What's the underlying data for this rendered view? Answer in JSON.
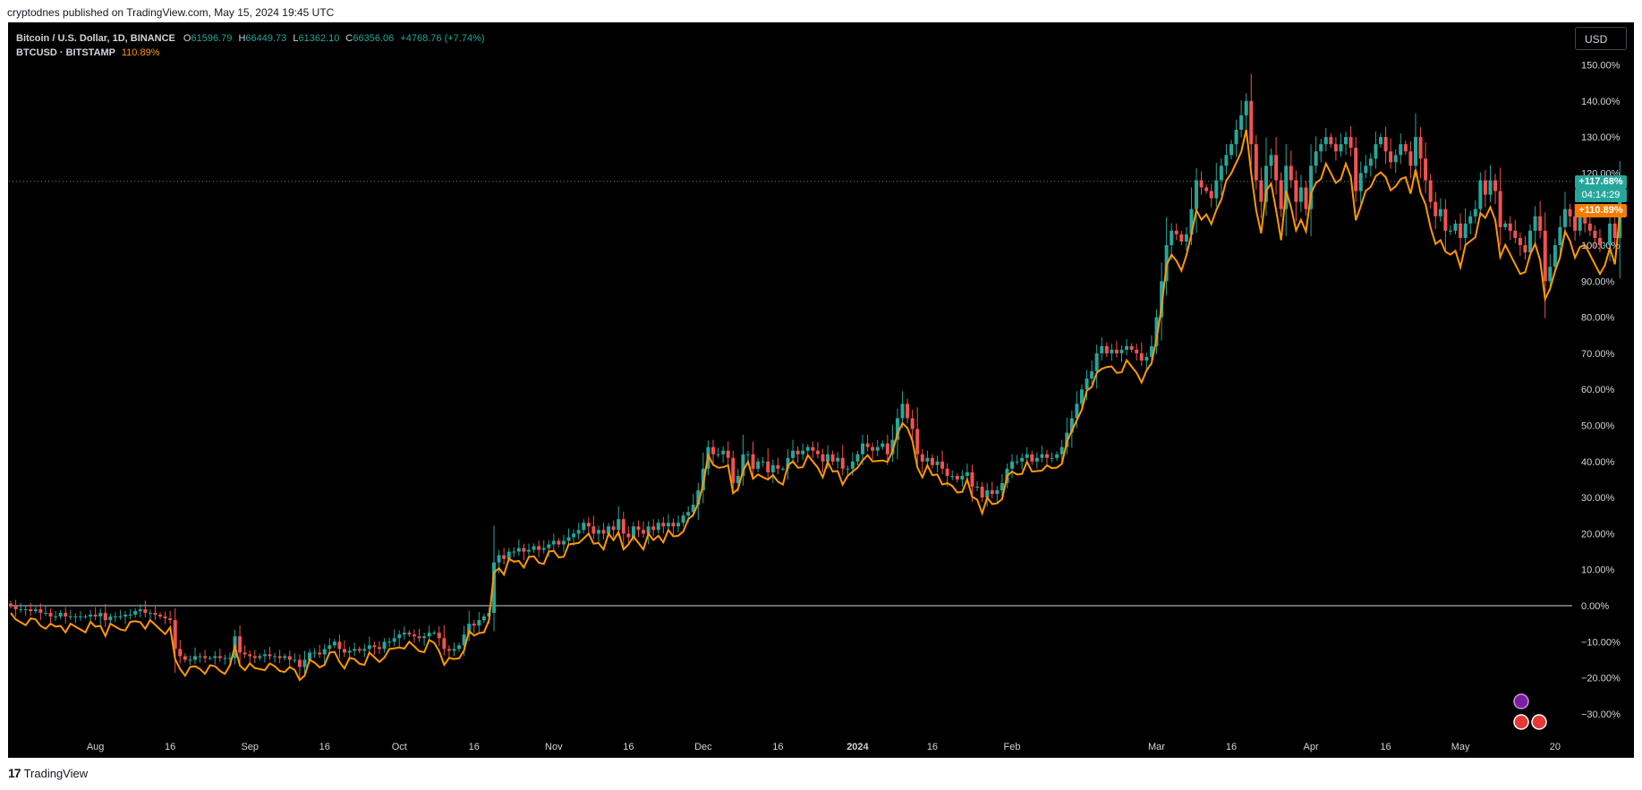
{
  "publish_line": "cryptodnes published on TradingView.com, May 15, 2024 19:45 UTC",
  "legend": {
    "symbol": "Bitcoin / U.S. Dollar, 1D, BINANCE",
    "o_label": "O",
    "o_value": "61596.79",
    "h_label": "H",
    "h_value": "66449.73",
    "l_label": "L",
    "l_value": "61362.10",
    "c_label": "C",
    "c_value": "66356.06",
    "change": "+4768.76 (+7.74%)",
    "compare_symbol": "BTCUSD · BITSTAMP",
    "compare_value": "110.89%"
  },
  "currency_button": "USD",
  "footer_text": "TradingView",
  "footer_logo": "17",
  "colors": {
    "up": "#26a69a",
    "down": "#ef5350",
    "compare": "#ff9800",
    "background": "#000000"
  },
  "price_tags": {
    "main_value": "+117.68%",
    "countdown": "04:14:29",
    "compare_value": "+110.89%"
  },
  "icons": [
    "lightning-icon",
    "us-flag-icon",
    "us-flag-icon"
  ],
  "chart_data": {
    "type": "candlestick",
    "y_scale": "percent",
    "ylim": [
      -35,
      152
    ],
    "yticks": [
      150,
      140,
      130,
      120,
      110,
      100,
      90,
      80,
      70,
      60,
      50,
      40,
      30,
      20,
      10,
      0,
      -10,
      -20,
      -30
    ],
    "ytick_labels": [
      "150.00%",
      "140.00%",
      "130.00%",
      "120.00%",
      "110.00%",
      "100.00%",
      "90.00%",
      "80.00%",
      "70.00%",
      "60.00%",
      "50.00%",
      "40.00%",
      "30.00%",
      "20.00%",
      "10.00%",
      "0.00%",
      "−10.00%",
      "−20.00%",
      "−30.00%"
    ],
    "x_range": [
      "2023-07-15",
      "2024-05-22"
    ],
    "xticks": [
      {
        "date": "2023-08-01",
        "label": "Aug"
      },
      {
        "date": "2023-08-16",
        "label": "16"
      },
      {
        "date": "2023-09-01",
        "label": "Sep"
      },
      {
        "date": "2023-09-16",
        "label": "16"
      },
      {
        "date": "2023-10-01",
        "label": "Oct"
      },
      {
        "date": "2023-10-16",
        "label": "16"
      },
      {
        "date": "2023-11-01",
        "label": "Nov"
      },
      {
        "date": "2023-11-16",
        "label": "16"
      },
      {
        "date": "2023-12-01",
        "label": "Dec"
      },
      {
        "date": "2023-12-16",
        "label": "16"
      },
      {
        "date": "2024-01-01",
        "label": "2024"
      },
      {
        "date": "2024-01-16",
        "label": "16"
      },
      {
        "date": "2024-02-01",
        "label": "Feb"
      },
      {
        "date": "2024-03-01",
        "label": "Mar"
      },
      {
        "date": "2024-03-16",
        "label": "16"
      },
      {
        "date": "2024-04-01",
        "label": "Apr"
      },
      {
        "date": "2024-04-16",
        "label": "16"
      },
      {
        "date": "2024-05-01",
        "label": "May"
      },
      {
        "date": "2024-05-20",
        "label": "20"
      }
    ],
    "series": [
      {
        "name": "Bitcoin / U.S. Dollar",
        "type": "candlestick",
        "start_date": "2023-07-15",
        "close": [
          0,
          -1,
          -1,
          -1,
          -1.5,
          -1,
          -2,
          -2,
          -3,
          -3,
          -2,
          -3,
          -3,
          -3,
          -3,
          -3,
          -2.5,
          -3,
          -2,
          -4,
          -3,
          -3,
          -3,
          -2.5,
          -2.5,
          -1.5,
          -1,
          -2,
          -2,
          -2.5,
          -3,
          -3.5,
          -4,
          -12,
          -14,
          -15,
          -15,
          -14,
          -14,
          -14.5,
          -14.5,
          -14,
          -14.5,
          -14.5,
          -14.5,
          -8.5,
          -13,
          -13.5,
          -14,
          -14.5,
          -14,
          -13.5,
          -14,
          -14,
          -14.5,
          -14,
          -15,
          -15,
          -17,
          -15,
          -13,
          -13,
          -13.5,
          -12,
          -11,
          -10,
          -12,
          -13,
          -12.5,
          -12,
          -12.5,
          -12,
          -11,
          -11.5,
          -12,
          -10,
          -10,
          -9,
          -8,
          -7.5,
          -8,
          -8.5,
          -9,
          -8.5,
          -7.5,
          -7.5,
          -9,
          -12,
          -12.5,
          -12,
          -11,
          -8,
          -5,
          -5.5,
          -4,
          -3,
          -2,
          12,
          14,
          13,
          15,
          15,
          16,
          15,
          15.5,
          16.5,
          15.5,
          16,
          17,
          18,
          17,
          18,
          19,
          20,
          21,
          23,
          22,
          20,
          21,
          20,
          22,
          21,
          24,
          20,
          19,
          22,
          21,
          20,
          22,
          21,
          23,
          22,
          23,
          22,
          23,
          25,
          26,
          28,
          32,
          38,
          44,
          42,
          42,
          43,
          41,
          34,
          36,
          42,
          42,
          38,
          40,
          40,
          37,
          39,
          38,
          38,
          41,
          43,
          42,
          43,
          44,
          43,
          42,
          40,
          42,
          40,
          41,
          38,
          38,
          40,
          42,
          45,
          44,
          43,
          44,
          45,
          42,
          46,
          52,
          56,
          52,
          49,
          42,
          40,
          41,
          39,
          40,
          38,
          36,
          36,
          35,
          36,
          37,
          33,
          33,
          30,
          32,
          31,
          32,
          34,
          38,
          40,
          40,
          41,
          42,
          40,
          41,
          42,
          41,
          41,
          42,
          44,
          48,
          52,
          56,
          60,
          63,
          65,
          70,
          72,
          70,
          71,
          70,
          71,
          72,
          71,
          70,
          68,
          69,
          72,
          80,
          90,
          100,
          104,
          103,
          101,
          103,
          110,
          118,
          116,
          115,
          113,
          118,
          122,
          125,
          128,
          132,
          136,
          140,
          128,
          118,
          112,
          122,
          125,
          118,
          110,
          122,
          118,
          112,
          116,
          110,
          122,
          126,
          128,
          130,
          128,
          126,
          128,
          130,
          127,
          115,
          120,
          122,
          124,
          128,
          130,
          126,
          123,
          125,
          128,
          126,
          122,
          130,
          124,
          118,
          112,
          108,
          110,
          104,
          104,
          106,
          102,
          106,
          108,
          110,
          118,
          114,
          118,
          115,
          105,
          106,
          104,
          102,
          100,
          98,
          104,
          108,
          104,
          90,
          94,
          100,
          105,
          110,
          108,
          104,
          108,
          106,
          104,
          102,
          100,
          100,
          106,
          102,
          117.68
        ],
        "last_close_label": "+117.68%"
      },
      {
        "name": "BTCUSD · BITSTAMP",
        "type": "line",
        "color": "#ff9800",
        "last_value_label": "+110.89%"
      }
    ],
    "reference_line": 0,
    "current_price_line": 117.68,
    "grid": false
  }
}
